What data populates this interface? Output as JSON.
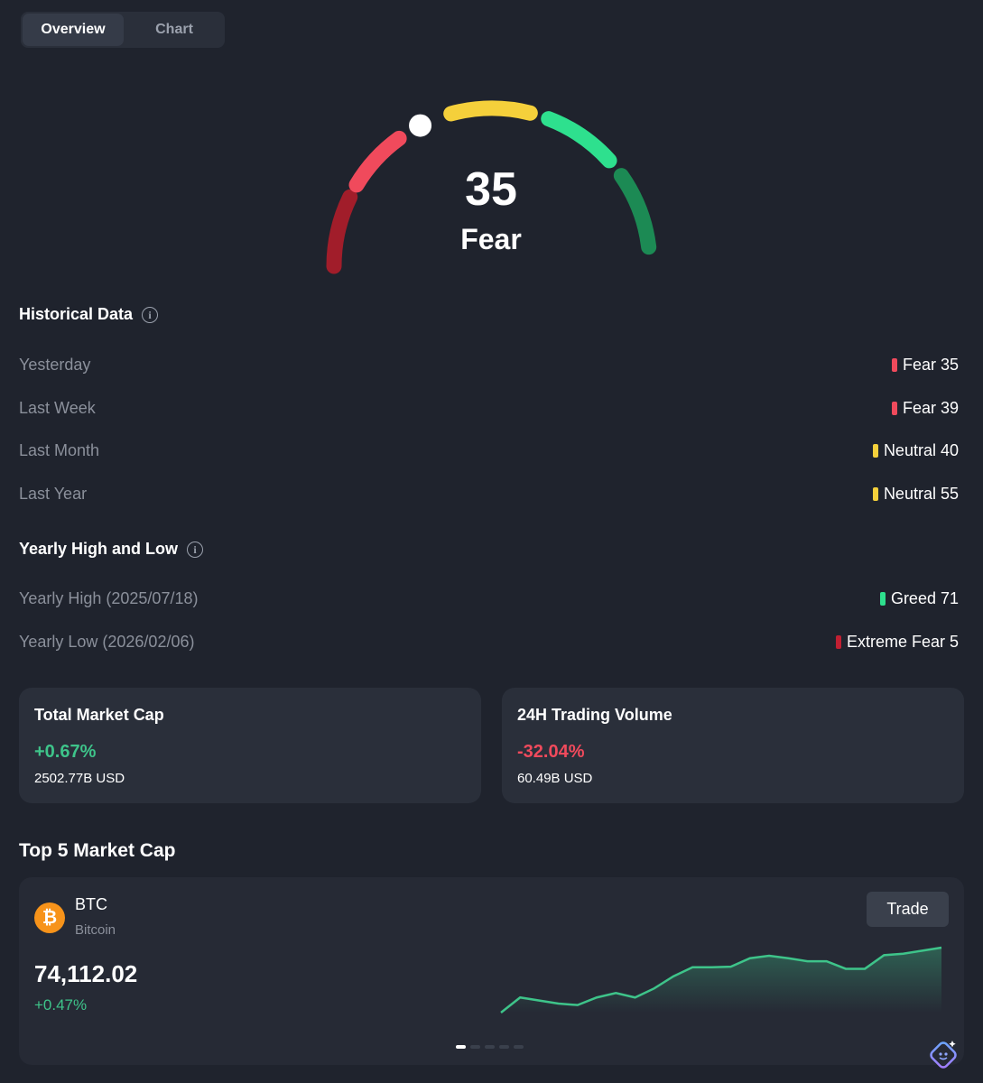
{
  "tabs": [
    {
      "label": "Overview",
      "active": true
    },
    {
      "label": "Chart",
      "active": false
    }
  ],
  "gauge": {
    "value": "35",
    "label": "Fear",
    "level": 35,
    "segment_colors": [
      "#a11d2a",
      "#f04a5c",
      "#f5d03b",
      "#2ee08e",
      "#1c8a54"
    ]
  },
  "historical": {
    "title": "Historical Data",
    "rows": [
      {
        "label": "Yesterday",
        "value": "Fear 35",
        "color": "#f04a5c"
      },
      {
        "label": "Last Week",
        "value": "Fear 39",
        "color": "#f04a5c"
      },
      {
        "label": "Last Month",
        "value": "Neutral 40",
        "color": "#f5d03b"
      },
      {
        "label": "Last Year",
        "value": "Neutral 55",
        "color": "#f5d03b"
      }
    ]
  },
  "yearly": {
    "title": "Yearly High and Low",
    "rows": [
      {
        "label": "Yearly High (2025/07/18)",
        "value": "Greed 71",
        "color": "#2ee08e"
      },
      {
        "label": "Yearly Low (2026/02/06)",
        "value": "Extreme Fear 5",
        "color": "#c01f32"
      }
    ]
  },
  "cards": [
    {
      "title": "Total Market Cap",
      "pct": "+0.67%",
      "sub": "2502.77B USD",
      "color": "#3ec48a"
    },
    {
      "title": "24H Trading Volume",
      "pct": "-32.04%",
      "sub": "60.49B USD",
      "color": "#f04a5c"
    }
  ],
  "top5": {
    "title": "Top 5 Market Cap",
    "coin": {
      "symbol": "BTC",
      "name": "Bitcoin",
      "price": "74,112.02",
      "change": "+0.47%",
      "trade_label": "Trade",
      "icon": "bitcoin-icon",
      "sparkline": [
        20,
        25,
        24,
        23,
        22.5,
        25,
        26.5,
        25,
        28,
        32,
        35,
        35,
        35.2,
        38,
        38.8,
        38,
        37,
        37,
        34.5,
        34.5,
        39,
        39.5,
        40.5,
        41.5
      ]
    },
    "pager_count": 5,
    "pager_active": 0
  },
  "colors": {
    "accent_green": "#3ec48a",
    "accent_red": "#f04a5c"
  }
}
